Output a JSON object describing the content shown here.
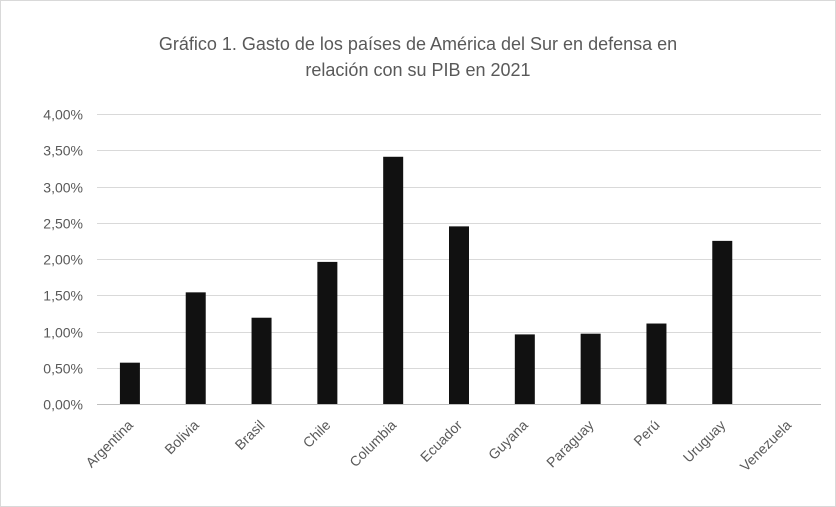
{
  "chart_data": {
    "type": "bar",
    "title_lines": [
      "Gráfico 1. Gasto de los países de América del Sur en defensa en",
      "relación con su PIB en 2021"
    ],
    "title": "Gráfico 1. Gasto de los países de América del Sur en defensa en relación con su PIB en 2021",
    "xlabel": "",
    "ylabel": "",
    "categories": [
      "Argentina",
      "Bolivia",
      "Brasil",
      "Chile",
      "Columbia",
      "Ecuador",
      "Guyana",
      "Paraguay",
      "Perú",
      "Uruguay",
      "Venezuela"
    ],
    "values": [
      0.57,
      1.54,
      1.19,
      1.96,
      3.41,
      2.45,
      0.96,
      0.97,
      1.11,
      2.25,
      0
    ],
    "ylim": [
      0,
      4
    ],
    "y_ticks": [
      0,
      0.5,
      1.0,
      1.5,
      2.0,
      2.5,
      3.0,
      3.5,
      4.0
    ],
    "y_tick_labels": [
      "0,00%",
      "0,50%",
      "1,00%",
      "1,50%",
      "2,00%",
      "2,50%",
      "3,00%",
      "3,50%",
      "4,00%"
    ],
    "grid": true,
    "legend": "none",
    "bar_color": "#111111"
  }
}
